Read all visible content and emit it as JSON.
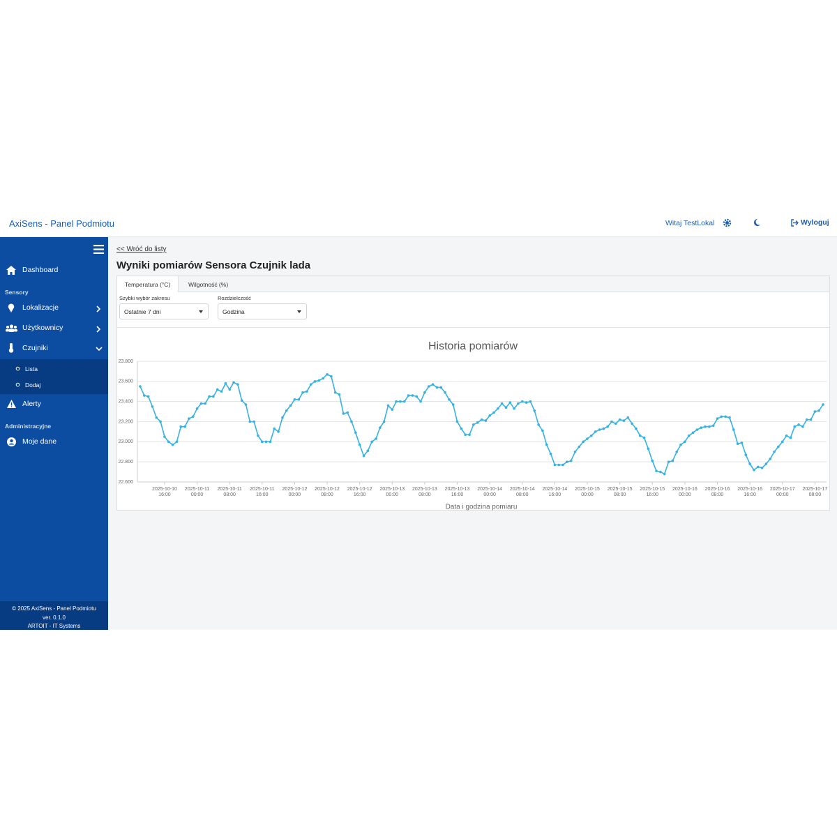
{
  "navbar": {
    "brand": "AxiSens - Panel Podmiotu",
    "greeting": "Witaj TestLokal",
    "logout": "Wyloguj"
  },
  "sidebar": {
    "items": [
      "Dashboard"
    ],
    "section_1": "Sensory",
    "sensor_items": [
      "Lokalizacje",
      "Użytkownicy",
      "Czujniki"
    ],
    "sub_items": [
      "Lista",
      "Dodaj"
    ],
    "alerts": "Alerty",
    "section_2": "Administracyjne",
    "admin_items": [
      "Moje dane"
    ],
    "footer": [
      "© 2025 AxiSens - Panel Podmiotu",
      "ver. 0.1.0",
      "ARTOIT - IT Systems"
    ]
  },
  "content": {
    "back_link": "<< Wróć do listy",
    "title": "Wyniki pomiarów Sensora Czujnik lada",
    "tabs": [
      "Temperatura (°C)",
      "Wilgotność (%)"
    ],
    "range_label": "Szybki wybór zakresu",
    "range_value": "Ostatnie 7 dni",
    "resolution_label": "Rozdzielczość",
    "resolution_value": "Godzina"
  },
  "chart_data": {
    "type": "line",
    "title": "Historia pomiarów",
    "x_label": "Data i godzina pomiaru",
    "color": "#35b1e2",
    "grid": true,
    "x": [
      "2025-10-10 10:00",
      "2025-10-10 11:00",
      "2025-10-10 12:00",
      "2025-10-10 13:00",
      "2025-10-10 14:00",
      "2025-10-10 15:00",
      "2025-10-10 16:00",
      "2025-10-10 17:00",
      "2025-10-10 18:00",
      "2025-10-10 19:00",
      "2025-10-10 20:00",
      "2025-10-10 21:00",
      "2025-10-10 22:00",
      "2025-10-10 23:00",
      "2025-10-11 00:00",
      "2025-10-11 01:00",
      "2025-10-11 02:00",
      "2025-10-11 03:00",
      "2025-10-11 04:00",
      "2025-10-11 05:00",
      "2025-10-11 06:00",
      "2025-10-11 07:00",
      "2025-10-11 08:00",
      "2025-10-11 09:00",
      "2025-10-11 10:00",
      "2025-10-11 11:00",
      "2025-10-11 12:00",
      "2025-10-11 13:00",
      "2025-10-11 14:00",
      "2025-10-11 15:00",
      "2025-10-11 16:00",
      "2025-10-11 17:00",
      "2025-10-11 18:00",
      "2025-10-11 19:00",
      "2025-10-11 20:00",
      "2025-10-11 21:00",
      "2025-10-11 22:00",
      "2025-10-11 23:00",
      "2025-10-12 00:00",
      "2025-10-12 01:00",
      "2025-10-12 02:00",
      "2025-10-12 03:00",
      "2025-10-12 04:00",
      "2025-10-12 05:00",
      "2025-10-12 06:00",
      "2025-10-12 07:00",
      "2025-10-12 08:00",
      "2025-10-12 09:00",
      "2025-10-12 10:00",
      "2025-10-12 11:00",
      "2025-10-12 12:00",
      "2025-10-12 13:00",
      "2025-10-12 14:00",
      "2025-10-12 15:00",
      "2025-10-12 16:00",
      "2025-10-12 17:00",
      "2025-10-12 18:00",
      "2025-10-12 19:00",
      "2025-10-12 20:00",
      "2025-10-12 21:00",
      "2025-10-12 22:00",
      "2025-10-12 23:00",
      "2025-10-13 00:00",
      "2025-10-13 01:00",
      "2025-10-13 02:00",
      "2025-10-13 03:00",
      "2025-10-13 04:00",
      "2025-10-13 05:00",
      "2025-10-13 06:00",
      "2025-10-13 07:00",
      "2025-10-13 08:00",
      "2025-10-13 09:00",
      "2025-10-13 10:00",
      "2025-10-13 11:00",
      "2025-10-13 12:00",
      "2025-10-13 13:00",
      "2025-10-13 14:00",
      "2025-10-13 15:00",
      "2025-10-13 16:00",
      "2025-10-13 17:00",
      "2025-10-13 18:00",
      "2025-10-13 19:00",
      "2025-10-13 20:00",
      "2025-10-13 21:00",
      "2025-10-13 22:00",
      "2025-10-13 23:00",
      "2025-10-14 00:00",
      "2025-10-14 01:00",
      "2025-10-14 02:00",
      "2025-10-14 03:00",
      "2025-10-14 04:00",
      "2025-10-14 05:00",
      "2025-10-14 06:00",
      "2025-10-14 07:00",
      "2025-10-14 08:00",
      "2025-10-14 09:00",
      "2025-10-14 10:00",
      "2025-10-14 11:00",
      "2025-10-14 12:00",
      "2025-10-14 13:00",
      "2025-10-14 14:00",
      "2025-10-14 15:00",
      "2025-10-14 16:00",
      "2025-10-14 17:00",
      "2025-10-14 18:00",
      "2025-10-14 19:00",
      "2025-10-14 20:00",
      "2025-10-14 21:00",
      "2025-10-14 22:00",
      "2025-10-14 23:00",
      "2025-10-15 00:00",
      "2025-10-15 01:00",
      "2025-10-15 02:00",
      "2025-10-15 03:00",
      "2025-10-15 04:00",
      "2025-10-15 05:00",
      "2025-10-15 06:00",
      "2025-10-15 07:00",
      "2025-10-15 08:00",
      "2025-10-15 09:00",
      "2025-10-15 10:00",
      "2025-10-15 11:00",
      "2025-10-15 12:00",
      "2025-10-15 13:00",
      "2025-10-15 14:00",
      "2025-10-15 15:00",
      "2025-10-15 16:00",
      "2025-10-15 17:00",
      "2025-10-15 18:00",
      "2025-10-15 19:00",
      "2025-10-15 20:00",
      "2025-10-15 21:00",
      "2025-10-15 22:00",
      "2025-10-15 23:00",
      "2025-10-16 00:00",
      "2025-10-16 01:00",
      "2025-10-16 02:00",
      "2025-10-16 03:00",
      "2025-10-16 04:00",
      "2025-10-16 05:00",
      "2025-10-16 06:00",
      "2025-10-16 07:00",
      "2025-10-16 08:00",
      "2025-10-16 09:00",
      "2025-10-16 10:00",
      "2025-10-16 11:00",
      "2025-10-16 12:00",
      "2025-10-16 13:00",
      "2025-10-16 14:00",
      "2025-10-16 15:00",
      "2025-10-16 16:00",
      "2025-10-16 17:00",
      "2025-10-16 18:00",
      "2025-10-16 19:00",
      "2025-10-16 20:00",
      "2025-10-16 21:00",
      "2025-10-16 22:00",
      "2025-10-16 23:00",
      "2025-10-17 00:00",
      "2025-10-17 01:00",
      "2025-10-17 02:00",
      "2025-10-17 03:00",
      "2025-10-17 04:00",
      "2025-10-17 05:00",
      "2025-10-17 06:00",
      "2025-10-17 07:00",
      "2025-10-17 08:00",
      "2025-10-17 09:00",
      "2025-10-17 10:00"
    ],
    "values": [
      23.55,
      23.46,
      23.45,
      23.35,
      23.24,
      23.2,
      23.05,
      23.0,
      22.97,
      23.0,
      23.15,
      23.15,
      23.23,
      23.25,
      23.33,
      23.38,
      23.38,
      23.45,
      23.45,
      23.52,
      23.5,
      23.58,
      23.52,
      23.59,
      23.57,
      23.41,
      23.37,
      23.2,
      23.2,
      23.06,
      23.0,
      23.0,
      23.0,
      23.13,
      23.1,
      23.24,
      23.31,
      23.36,
      23.42,
      23.42,
      23.49,
      23.5,
      23.57,
      23.6,
      23.61,
      23.63,
      23.67,
      23.65,
      23.49,
      23.47,
      23.28,
      23.29,
      23.2,
      23.09,
      22.97,
      22.86,
      22.91,
      23.0,
      23.03,
      23.14,
      23.2,
      23.36,
      23.32,
      23.4,
      23.4,
      23.4,
      23.46,
      23.46,
      23.45,
      23.4,
      23.49,
      23.55,
      23.57,
      23.54,
      23.54,
      23.49,
      23.42,
      23.37,
      23.2,
      23.13,
      23.07,
      23.07,
      23.17,
      23.19,
      23.22,
      23.21,
      23.26,
      23.29,
      23.33,
      23.38,
      23.34,
      23.39,
      23.33,
      23.38,
      23.4,
      23.39,
      23.4,
      23.31,
      23.17,
      23.11,
      22.97,
      22.88,
      22.77,
      22.77,
      22.77,
      22.8,
      22.81,
      22.9,
      22.95,
      23.0,
      23.03,
      23.06,
      23.1,
      23.12,
      23.13,
      23.15,
      23.2,
      23.18,
      23.22,
      23.21,
      23.24,
      23.18,
      23.13,
      23.06,
      23.04,
      22.93,
      22.81,
      22.71,
      22.7,
      22.68,
      22.8,
      22.81,
      22.9,
      22.97,
      23.0,
      23.06,
      23.09,
      23.12,
      23.14,
      23.15,
      23.15,
      23.16,
      23.23,
      23.25,
      23.25,
      23.24,
      23.12,
      22.98,
      22.99,
      22.87,
      22.78,
      22.72,
      22.75,
      22.74,
      22.78,
      22.83,
      22.9,
      22.95,
      23.0,
      23.06,
      23.04,
      23.15,
      23.17,
      23.15,
      23.22,
      23.22,
      23.3,
      23.31,
      23.37
    ],
    "ylim": [
      22.6,
      23.8
    ],
    "yticks": [
      {
        "value": 22.6,
        "label": "22.600"
      },
      {
        "value": 22.8,
        "label": "22.800"
      },
      {
        "value": 23.0,
        "label": "23.000"
      },
      {
        "value": 23.2,
        "label": "23.200"
      },
      {
        "value": 23.4,
        "label": "23.400"
      },
      {
        "value": 23.6,
        "label": "23.600"
      },
      {
        "value": 23.8,
        "label": "23.800"
      }
    ],
    "xticks": [
      "2025-10-10 16:00",
      "2025-10-11 00:00",
      "2025-10-11 08:00",
      "2025-10-11 16:00",
      "2025-10-12 00:00",
      "2025-10-12 08:00",
      "2025-10-12 16:00",
      "2025-10-13 00:00",
      "2025-10-13 08:00",
      "2025-10-13 16:00",
      "2025-10-14 00:00",
      "2025-10-14 08:00",
      "2025-10-14 16:00",
      "2025-10-15 00:00",
      "2025-10-15 08:00",
      "2025-10-15 16:00",
      "2025-10-16 00:00",
      "2025-10-16 08:00",
      "2025-10-16 16:00",
      "2025-10-17 00:00",
      "2025-10-17 08:00"
    ]
  }
}
